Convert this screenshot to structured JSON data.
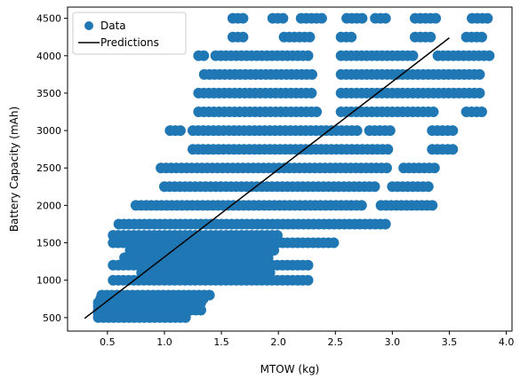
{
  "chart_data": {
    "type": "scatter",
    "xlabel": "MTOW (kg)",
    "ylabel": "Battery Capacity (mAh)",
    "xlim": [
      0.15,
      4.05
    ],
    "ylim": [
      320,
      4650
    ],
    "xticks": [
      0.5,
      1.0,
      1.5,
      2.0,
      2.5,
      3.0,
      3.5,
      4.0
    ],
    "xtick_labels": [
      "0.5",
      "1.0",
      "1.5",
      "2.0",
      "2.5",
      "3.0",
      "3.5",
      "4.0"
    ],
    "yticks": [
      500,
      1000,
      1500,
      2000,
      2500,
      3000,
      3500,
      4000,
      4500
    ],
    "ytick_labels": [
      "500",
      "1000",
      "1500",
      "2000",
      "2500",
      "3000",
      "3500",
      "4000",
      "4500"
    ],
    "grid": false,
    "legend": {
      "position": "upper-left",
      "entries": [
        "Data",
        "Predictions"
      ]
    },
    "series": [
      {
        "name": "Data",
        "kind": "scatter",
        "color": "#1f77b4",
        "bands": [
          {
            "y": 500,
            "x_ranges": [
              [
                0.42,
                1.22
              ]
            ]
          },
          {
            "y": 550,
            "x_ranges": [
              [
                0.42,
                1.2
              ]
            ]
          },
          {
            "y": 600,
            "x_ranges": [
              [
                0.42,
                1.35
              ]
            ]
          },
          {
            "y": 650,
            "x_ranges": [
              [
                0.42,
                1.3
              ]
            ]
          },
          {
            "y": 700,
            "x_ranges": [
              [
                0.42,
                1.35
              ]
            ]
          },
          {
            "y": 750,
            "x_ranges": [
              [
                0.44,
                1.38
              ]
            ]
          },
          {
            "y": 800,
            "x_ranges": [
              [
                0.45,
                1.4
              ]
            ]
          },
          {
            "y": 1000,
            "x_ranges": [
              [
                0.55,
                2.3
              ]
            ]
          },
          {
            "y": 1100,
            "x_ranges": [
              [
                0.8,
                1.95
              ]
            ]
          },
          {
            "y": 1200,
            "x_ranges": [
              [
                0.55,
                2.3
              ]
            ]
          },
          {
            "y": 1300,
            "x_ranges": [
              [
                0.65,
                1.95
              ]
            ]
          },
          {
            "y": 1400,
            "x_ranges": [
              [
                0.7,
                2.0
              ]
            ]
          },
          {
            "y": 1500,
            "x_ranges": [
              [
                0.55,
                2.5
              ]
            ]
          },
          {
            "y": 1600,
            "x_ranges": [
              [
                0.55,
                2.0
              ]
            ]
          },
          {
            "y": 1750,
            "x_ranges": [
              [
                0.6,
                2.95
              ]
            ]
          },
          {
            "y": 2000,
            "x_ranges": [
              [
                0.75,
                2.75
              ],
              [
                2.9,
                3.35
              ]
            ]
          },
          {
            "y": 2250,
            "x_ranges": [
              [
                1.0,
                2.85
              ],
              [
                3.0,
                3.35
              ]
            ]
          },
          {
            "y": 2500,
            "x_ranges": [
              [
                0.97,
                2.95
              ],
              [
                3.1,
                3.4
              ]
            ]
          },
          {
            "y": 2750,
            "x_ranges": [
              [
                1.25,
                3.0
              ],
              [
                3.35,
                3.55
              ]
            ]
          },
          {
            "y": 3000,
            "x_ranges": [
              [
                1.05,
                1.15
              ],
              [
                1.25,
                2.7
              ],
              [
                2.8,
                3.0
              ],
              [
                3.35,
                3.55
              ]
            ]
          },
          {
            "y": 3250,
            "x_ranges": [
              [
                1.3,
                2.35
              ],
              [
                2.55,
                3.4
              ],
              [
                3.65,
                3.8
              ]
            ]
          },
          {
            "y": 3500,
            "x_ranges": [
              [
                1.3,
                2.3
              ],
              [
                2.55,
                3.8
              ]
            ]
          },
          {
            "y": 3750,
            "x_ranges": [
              [
                1.35,
                2.3
              ],
              [
                2.55,
                3.8
              ]
            ]
          },
          {
            "y": 4000,
            "x_ranges": [
              [
                1.3,
                1.35
              ],
              [
                1.45,
                2.3
              ],
              [
                2.55,
                3.2
              ],
              [
                3.4,
                3.85
              ]
            ]
          },
          {
            "y": 4250,
            "x_ranges": [
              [
                1.6,
                1.72
              ],
              [
                2.05,
                2.3
              ],
              [
                2.55,
                2.65
              ],
              [
                3.2,
                3.35
              ],
              [
                3.65,
                3.8
              ]
            ]
          },
          {
            "y": 4500,
            "x_ranges": [
              [
                1.6,
                1.72
              ],
              [
                1.95,
                2.05
              ],
              [
                2.2,
                2.4
              ],
              [
                2.6,
                2.75
              ],
              [
                2.85,
                2.98
              ],
              [
                3.2,
                3.4
              ],
              [
                3.7,
                3.85
              ]
            ]
          }
        ]
      },
      {
        "name": "Predictions",
        "kind": "line",
        "color": "#000000",
        "x": [
          0.3,
          3.5
        ],
        "y": [
          490,
          4240
        ]
      }
    ]
  }
}
